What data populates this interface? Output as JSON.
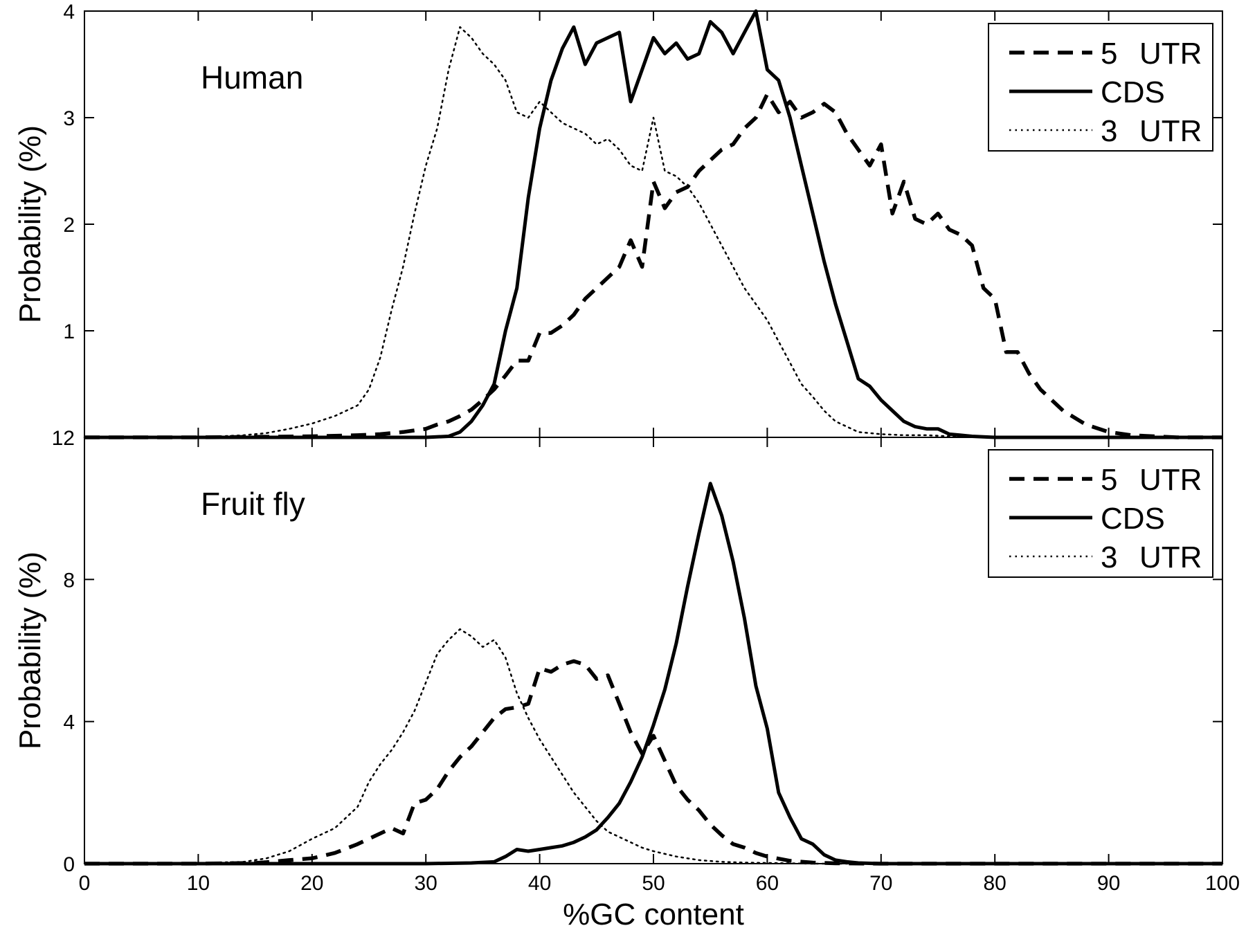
{
  "chart_data": [
    {
      "type": "line",
      "panel_label": "Human",
      "xlabel": "",
      "ylabel": "Probability (%)",
      "xlim": [
        0,
        100
      ],
      "ylim": [
        0,
        4
      ],
      "yticks": [
        0,
        1,
        2,
        3,
        4
      ],
      "ytick_labels": [
        "",
        "1",
        "2",
        "3",
        "4"
      ],
      "grid": false,
      "legend": {
        "placement": "top-right",
        "entries": [
          "5 UTR",
          "CDS",
          "3 UTR"
        ]
      },
      "series": [
        {
          "name": "5 UTR",
          "style": "dashed",
          "x": [
            0,
            10,
            20,
            24,
            26,
            28,
            30,
            31,
            32,
            33,
            34,
            35,
            36,
            37,
            38,
            39,
            40,
            41,
            42,
            43,
            44,
            45,
            46,
            47,
            48,
            49,
            50,
            51,
            52,
            53,
            54,
            55,
            56,
            57,
            58,
            59,
            60,
            61,
            62,
            63,
            64,
            65,
            66,
            67,
            68,
            69,
            70,
            71,
            72,
            73,
            74,
            75,
            76,
            77,
            78,
            79,
            80,
            81,
            82,
            83,
            84,
            85,
            86,
            88,
            90,
            92,
            94,
            96,
            98,
            100
          ],
          "values": [
            0,
            0,
            0.01,
            0.02,
            0.03,
            0.05,
            0.08,
            0.12,
            0.15,
            0.2,
            0.26,
            0.35,
            0.45,
            0.58,
            0.72,
            0.72,
            0.98,
            0.98,
            1.05,
            1.15,
            1.3,
            1.4,
            1.5,
            1.6,
            1.85,
            1.6,
            2.4,
            2.15,
            2.3,
            2.35,
            2.5,
            2.6,
            2.7,
            2.75,
            2.9,
            3.0,
            3.22,
            3.05,
            3.15,
            3.0,
            3.05,
            3.13,
            3.05,
            2.85,
            2.7,
            2.55,
            2.75,
            2.1,
            2.4,
            2.05,
            2.0,
            2.1,
            1.95,
            1.9,
            1.8,
            1.4,
            1.3,
            0.8,
            0.8,
            0.6,
            0.45,
            0.35,
            0.25,
            0.12,
            0.05,
            0.02,
            0.01,
            0,
            0,
            0
          ]
        },
        {
          "name": "CDS",
          "style": "solid",
          "x": [
            0,
            10,
            20,
            30,
            32,
            33,
            34,
            35,
            36,
            37,
            38,
            39,
            40,
            41,
            42,
            43,
            44,
            45,
            46,
            47,
            48,
            49,
            50,
            51,
            52,
            53,
            54,
            55,
            56,
            57,
            58,
            59,
            60,
            61,
            62,
            63,
            64,
            65,
            66,
            67,
            68,
            69,
            70,
            71,
            72,
            73,
            74,
            75,
            76,
            77,
            78,
            80,
            90,
            100
          ],
          "values": [
            0,
            0,
            0,
            0,
            0.01,
            0.05,
            0.15,
            0.3,
            0.5,
            1.0,
            1.4,
            2.25,
            2.9,
            3.35,
            3.65,
            3.85,
            3.5,
            3.7,
            3.75,
            3.8,
            3.15,
            3.45,
            3.75,
            3.6,
            3.7,
            3.55,
            3.6,
            3.9,
            3.8,
            3.6,
            3.8,
            4.0,
            3.45,
            3.35,
            3.0,
            2.55,
            2.1,
            1.65,
            1.25,
            0.9,
            0.55,
            0.48,
            0.35,
            0.25,
            0.15,
            0.1,
            0.08,
            0.08,
            0.03,
            0.02,
            0.01,
            0,
            0,
            0
          ]
        },
        {
          "name": "3 UTR",
          "style": "dotted",
          "x": [
            0,
            10,
            14,
            16,
            18,
            20,
            22,
            24,
            25,
            26,
            27,
            28,
            29,
            30,
            31,
            32,
            33,
            34,
            35,
            36,
            37,
            38,
            39,
            40,
            41,
            42,
            43,
            44,
            45,
            46,
            47,
            48,
            49,
            50,
            51,
            52,
            53,
            54,
            55,
            56,
            57,
            58,
            59,
            60,
            61,
            62,
            63,
            64,
            65,
            66,
            67,
            68,
            70,
            72,
            74,
            76,
            80,
            90,
            100
          ],
          "values": [
            0,
            0,
            0.02,
            0.04,
            0.08,
            0.13,
            0.2,
            0.3,
            0.45,
            0.75,
            1.2,
            1.6,
            2.1,
            2.55,
            2.9,
            3.45,
            3.85,
            3.75,
            3.6,
            3.5,
            3.35,
            3.05,
            3.0,
            3.15,
            3.05,
            2.95,
            2.9,
            2.85,
            2.75,
            2.8,
            2.7,
            2.55,
            2.5,
            3.0,
            2.5,
            2.45,
            2.35,
            2.2,
            2.0,
            1.8,
            1.6,
            1.4,
            1.25,
            1.1,
            0.9,
            0.7,
            0.5,
            0.38,
            0.25,
            0.15,
            0.1,
            0.05,
            0.03,
            0.02,
            0.02,
            0.01,
            0,
            0,
            0
          ]
        }
      ]
    },
    {
      "type": "line",
      "panel_label": "Fruit fly",
      "xlabel": "%GC content",
      "ylabel": "Probability (%)",
      "xlim": [
        0,
        100
      ],
      "ylim": [
        0,
        12
      ],
      "yticks": [
        0,
        4,
        8,
        12
      ],
      "ytick_labels": [
        "0",
        "4",
        "8",
        "12"
      ],
      "xticks": [
        0,
        10,
        20,
        30,
        40,
        50,
        60,
        70,
        80,
        90,
        100
      ],
      "grid": false,
      "legend": {
        "placement": "top-right",
        "entries": [
          "5 UTR",
          "CDS",
          "3 UTR"
        ]
      },
      "series": [
        {
          "name": "5 UTR",
          "style": "dashed",
          "x": [
            0,
            10,
            15,
            16,
            18,
            20,
            22,
            24,
            26,
            27,
            28,
            29,
            30,
            31,
            32,
            33,
            34,
            35,
            36,
            37,
            38,
            39,
            40,
            41,
            42,
            43,
            44,
            45,
            46,
            47,
            48,
            49,
            50,
            51,
            52,
            53,
            54,
            55,
            56,
            57,
            58,
            59,
            60,
            62,
            64,
            66,
            70,
            80,
            100
          ],
          "values": [
            0,
            0,
            0.02,
            0.04,
            0.1,
            0.15,
            0.3,
            0.55,
            0.85,
            1.0,
            0.85,
            1.7,
            1.8,
            2.1,
            2.6,
            3.0,
            3.3,
            3.7,
            4.1,
            4.35,
            4.4,
            4.5,
            5.5,
            5.4,
            5.6,
            5.7,
            5.6,
            5.2,
            5.3,
            4.5,
            3.7,
            3.1,
            3.6,
            2.9,
            2.2,
            1.8,
            1.5,
            1.1,
            0.8,
            0.55,
            0.45,
            0.3,
            0.2,
            0.08,
            0.03,
            0.01,
            0,
            0,
            0
          ]
        },
        {
          "name": "CDS",
          "style": "solid",
          "x": [
            0,
            10,
            20,
            30,
            34,
            36,
            37,
            38,
            39,
            40,
            41,
            42,
            43,
            44,
            45,
            46,
            47,
            48,
            49,
            50,
            51,
            52,
            53,
            54,
            55,
            56,
            57,
            58,
            59,
            60,
            61,
            62,
            63,
            64,
            65,
            66,
            67,
            68,
            70,
            80,
            100
          ],
          "values": [
            0,
            0,
            0,
            0,
            0.02,
            0.05,
            0.2,
            0.4,
            0.35,
            0.4,
            0.45,
            0.5,
            0.6,
            0.75,
            0.95,
            1.3,
            1.7,
            2.3,
            3.0,
            3.9,
            4.9,
            6.2,
            7.8,
            9.3,
            10.7,
            9.8,
            8.5,
            6.9,
            5.0,
            3.8,
            2.0,
            1.3,
            0.7,
            0.55,
            0.25,
            0.1,
            0.05,
            0.02,
            0,
            0,
            0
          ]
        },
        {
          "name": "3 UTR",
          "style": "dotted",
          "x": [
            0,
            10,
            14,
            16,
            18,
            20,
            22,
            24,
            25,
            26,
            27,
            28,
            29,
            30,
            31,
            32,
            33,
            34,
            35,
            36,
            37,
            38,
            39,
            40,
            41,
            42,
            43,
            44,
            45,
            46,
            47,
            48,
            49,
            50,
            52,
            54,
            56,
            58,
            60,
            62,
            64,
            70,
            100
          ],
          "values": [
            0,
            0.02,
            0.05,
            0.15,
            0.35,
            0.7,
            1.0,
            1.6,
            2.3,
            2.8,
            3.2,
            3.7,
            4.3,
            5.1,
            5.9,
            6.3,
            6.6,
            6.4,
            6.1,
            6.3,
            5.8,
            4.8,
            4.1,
            3.5,
            3.0,
            2.5,
            2.0,
            1.6,
            1.2,
            0.9,
            0.75,
            0.6,
            0.45,
            0.35,
            0.2,
            0.1,
            0.05,
            0.03,
            0.02,
            0.01,
            0,
            0,
            0
          ]
        }
      ]
    }
  ]
}
